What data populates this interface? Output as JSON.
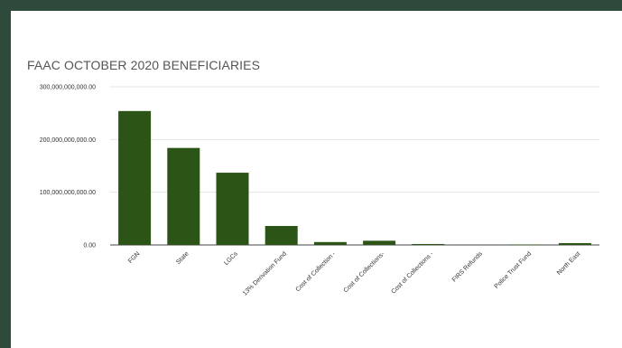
{
  "chart_data": {
    "type": "bar",
    "title": "FAAC OCTOBER 2020 BENEFICIARIES",
    "categories": [
      "FGN",
      "State",
      "LGCs",
      "13% Derivation Fund",
      "Cost of Collection -",
      "Cost of Collections-",
      "Cost of Collections -",
      "FIRS Refunds",
      "Police Trust Fund",
      "North East"
    ],
    "values": [
      254000000000,
      184000000000,
      137000000000,
      36000000000,
      5500000000,
      8000000000,
      1800000000,
      300000000,
      900000000,
      3500000000
    ],
    "y_ticks": [
      "0.00",
      "100,000,000,000.00",
      "200,000,000,000.00",
      "300,000,000,000.00"
    ],
    "ylim": [
      0,
      300000000000
    ],
    "xlabel": "",
    "ylabel": "",
    "grid": true,
    "legend": "none",
    "bar_color": "#2c5416",
    "grid_color": "#e6e6e6",
    "axis_color": "#444444"
  }
}
